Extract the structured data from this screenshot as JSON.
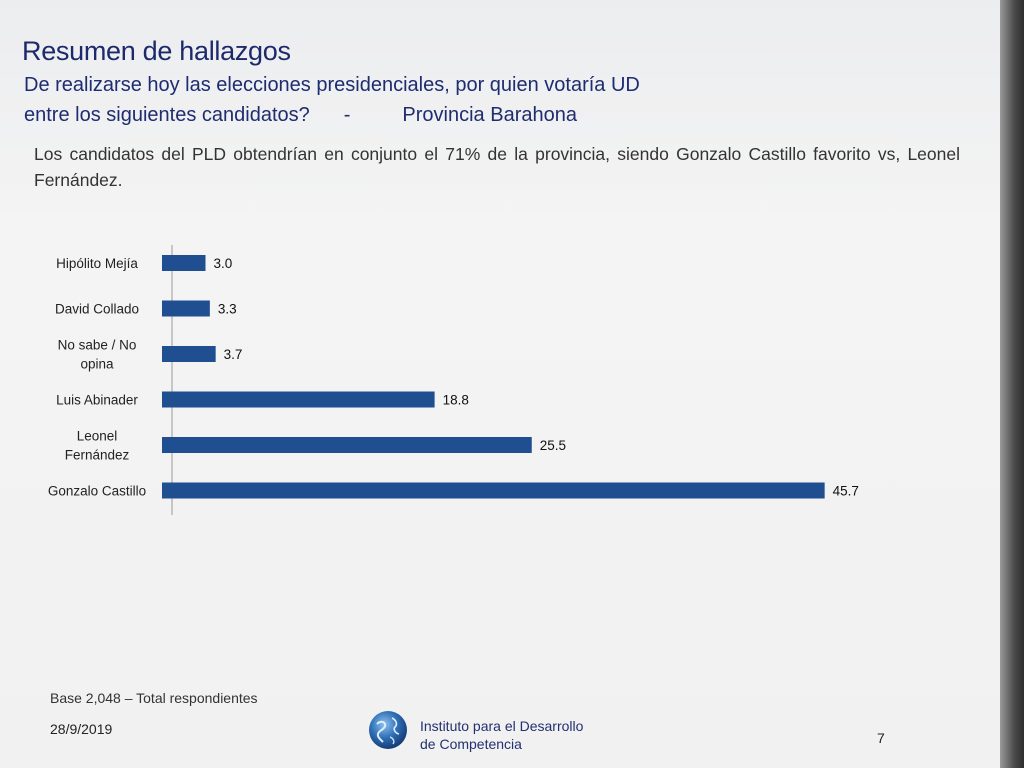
{
  "slide": {
    "title": "Resumen de hallazgos",
    "question_line1": "De realizarse hoy las elecciones presidenciales, por quien votaría UD",
    "question_line2": "entre los siguientes candidatos?",
    "question_dash": "-",
    "province": "Provincia Barahona",
    "summary": "Los candidatos del PLD obtendrían en conjunto el 71% de la provincia, siendo Gonzalo Castillo favorito vs, Leonel Fernández.",
    "base_note": "Base 2,048 – Total respondientes",
    "date": "28/9/2019",
    "institute_line1": "Instituto para el Desarrollo",
    "institute_line2": "de Competencia",
    "page_number": "7"
  },
  "colors": {
    "bar": "#1f4e91",
    "title": "#1c2a6b"
  },
  "chart_data": {
    "type": "bar",
    "orientation": "horizontal",
    "title": "",
    "xlabel": "",
    "ylabel": "",
    "xlim": [
      0,
      50
    ],
    "grid": false,
    "legend": "none",
    "categories": [
      [
        "Hipólito Mejía"
      ],
      [
        "David Collado"
      ],
      [
        "No sabe / No",
        "opina"
      ],
      [
        "Luis Abinader"
      ],
      [
        "Leonel",
        "Fernández"
      ],
      [
        "Gonzalo Castillo"
      ]
    ],
    "values": [
      3.0,
      3.3,
      3.7,
      18.8,
      25.5,
      45.7
    ],
    "value_labels": [
      "3.0",
      "3.3",
      "3.7",
      "18.8",
      "25.5",
      "45.7"
    ]
  }
}
